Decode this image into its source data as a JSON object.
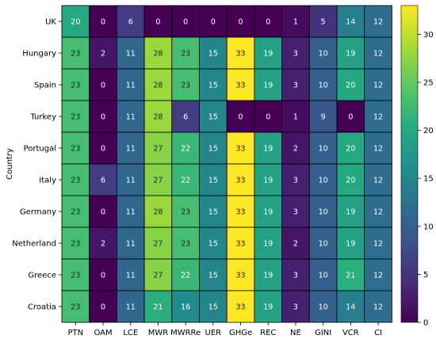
{
  "chart_data": {
    "type": "heatmap",
    "title": "",
    "xlabel": "",
    "ylabel": "Country",
    "x_categories": [
      "PTN",
      "OAM",
      "LCE",
      "MWR",
      "MWRRe",
      "UER",
      "GHGe",
      "REC",
      "NE",
      "GINI",
      "VCR",
      "CI"
    ],
    "y_categories": [
      "UK",
      "Hungary",
      "Spain",
      "Turkey",
      "Portugal",
      "Italy",
      "Germany",
      "Netherland",
      "Greece",
      "Croatia"
    ],
    "values": [
      [
        20,
        0,
        6,
        0,
        0,
        0,
        0,
        0,
        1,
        5,
        14,
        12
      ],
      [
        23,
        2,
        11,
        28,
        23,
        15,
        33,
        19,
        3,
        10,
        19,
        12
      ],
      [
        23,
        0,
        11,
        28,
        23,
        15,
        33,
        19,
        3,
        10,
        20,
        12
      ],
      [
        23,
        0,
        11,
        28,
        6,
        15,
        0,
        0,
        1,
        9,
        0,
        12
      ],
      [
        23,
        0,
        11,
        27,
        22,
        15,
        33,
        19,
        2,
        10,
        20,
        12
      ],
      [
        23,
        6,
        11,
        27,
        22,
        15,
        33,
        19,
        3,
        10,
        20,
        12
      ],
      [
        23,
        0,
        11,
        28,
        23,
        15,
        33,
        19,
        3,
        10,
        19,
        12
      ],
      [
        23,
        2,
        11,
        27,
        23,
        15,
        33,
        19,
        2,
        10,
        19,
        12
      ],
      [
        23,
        0,
        11,
        27,
        22,
        15,
        33,
        19,
        3,
        10,
        21,
        12
      ],
      [
        23,
        0,
        11,
        21,
        16,
        15,
        33,
        19,
        3,
        10,
        14,
        12
      ]
    ],
    "colorscale": "viridis",
    "vmin": 0,
    "vmax": 33,
    "colorbar_ticks": [
      0,
      5,
      10,
      15,
      20,
      25,
      30
    ],
    "annotations": true,
    "grid": false,
    "legend": "colorbar-right"
  }
}
